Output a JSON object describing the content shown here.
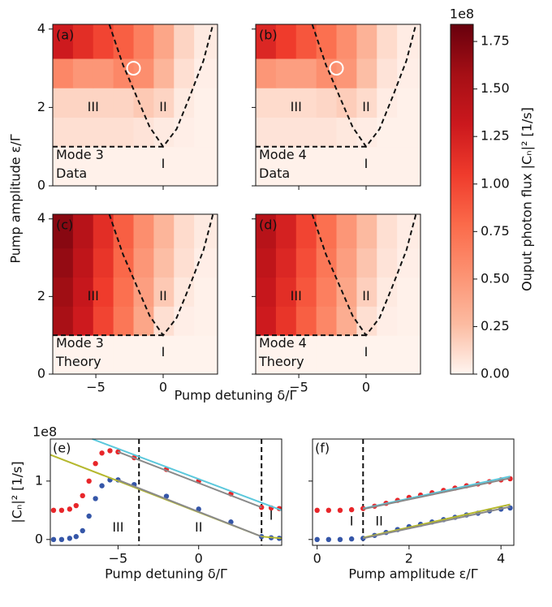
{
  "labels": {
    "heatmap_x": "Pump detuning δ/Γ",
    "heatmap_y": "Pump amplitude ε/Γ"
  },
  "chart_data": [
    {
      "type": "heatmap",
      "x_edges": [
        -8.2,
        -6.7,
        -5.2,
        -3.7,
        -2.2,
        -0.7,
        0.8,
        2.3,
        4.04
      ],
      "y_edges": [
        0,
        1,
        1.75,
        2.5,
        3.25,
        4.12
      ],
      "z": [
        [
          0.02,
          0.02,
          0.02,
          0.02,
          0.02,
          0.02,
          0.02,
          0.02
        ],
        [
          0.1,
          0.1,
          0.1,
          0.1,
          0.08,
          0.05,
          0.03,
          0.02
        ],
        [
          0.15,
          0.15,
          0.15,
          0.15,
          0.2,
          0.15,
          0.05,
          0.02
        ],
        [
          0.6,
          0.5,
          0.5,
          0.6,
          0.55,
          0.3,
          0.1,
          0.03
        ],
        [
          1.3,
          1.15,
          1.0,
          0.85,
          0.65,
          0.4,
          0.15,
          0.05
        ]
      ],
      "xlim": [
        -8.2,
        4.04
      ],
      "ylim": [
        0,
        4.12
      ],
      "xticks": [
        {
          "value": -5,
          "label": "−5"
        },
        0
      ],
      "yticks": [
        0,
        2,
        4
      ],
      "xtick_labels": false,
      "ytick_labels": true,
      "boundary": {
        "x": [
          -4,
          -3,
          -2,
          -1,
          0,
          1,
          2,
          3,
          3.7
        ],
        "y": [
          4.12,
          3.1,
          2.3,
          1.5,
          1,
          1.45,
          2.3,
          3.2,
          4.12
        ]
      },
      "threshold": {
        "x": [
          -8.2,
          0
        ],
        "y": [
          1,
          1
        ]
      },
      "marker": {
        "x": -2.2,
        "y": 3.0
      },
      "annotations": [
        "(a)",
        "III",
        "II",
        "I",
        "Mode 3",
        "Data"
      ]
    },
    {
      "type": "heatmap",
      "x_edges": [
        -8.2,
        -6.7,
        -5.2,
        -3.7,
        -2.2,
        -0.7,
        0.8,
        2.3,
        4.04
      ],
      "y_edges": [
        0,
        1,
        1.75,
        2.5,
        3.25,
        4.12
      ],
      "z": [
        [
          0.02,
          0.02,
          0.02,
          0.02,
          0.02,
          0.02,
          0.02,
          0.02
        ],
        [
          0.08,
          0.08,
          0.08,
          0.08,
          0.06,
          0.04,
          0.02,
          0.02
        ],
        [
          0.12,
          0.12,
          0.12,
          0.14,
          0.18,
          0.12,
          0.04,
          0.02
        ],
        [
          0.5,
          0.45,
          0.45,
          0.55,
          0.5,
          0.25,
          0.08,
          0.03
        ],
        [
          1.2,
          1.05,
          0.9,
          0.75,
          0.55,
          0.32,
          0.12,
          0.04
        ]
      ],
      "xlim": [
        -8.2,
        4.04
      ],
      "ylim": [
        0,
        4.12
      ],
      "xticks": [
        {
          "value": -5,
          "label": "−5"
        },
        0
      ],
      "yticks": [
        0,
        2,
        4
      ],
      "xtick_labels": false,
      "ytick_labels": false,
      "boundary": {
        "x": [
          -4,
          -3,
          -2,
          -1,
          0,
          1,
          2,
          3,
          3.7
        ],
        "y": [
          4.12,
          3.1,
          2.3,
          1.5,
          1,
          1.45,
          2.3,
          3.2,
          4.12
        ]
      },
      "threshold": {
        "x": [
          -8.2,
          0
        ],
        "y": [
          1,
          1
        ]
      },
      "marker": {
        "x": -2.2,
        "y": 3.0
      },
      "annotations": [
        "(b)",
        "III",
        "II",
        "I",
        "Mode 4",
        "Data"
      ]
    },
    {
      "type": "heatmap",
      "x_edges": [
        -8.2,
        -6.7,
        -5.2,
        -3.7,
        -2.2,
        -0.7,
        0.8,
        2.3,
        4.04
      ],
      "y_edges": [
        0,
        1,
        1.75,
        2.5,
        3.25,
        4.12
      ],
      "z": [
        [
          0.01,
          0.01,
          0.01,
          0.01,
          0.01,
          0.01,
          0.01,
          0.01
        ],
        [
          1.55,
          1.3,
          1.0,
          0.7,
          0.4,
          0.1,
          0.03,
          0.02
        ],
        [
          1.6,
          1.35,
          1.05,
          0.75,
          0.45,
          0.2,
          0.06,
          0.02
        ],
        [
          1.65,
          1.4,
          1.1,
          0.8,
          0.5,
          0.25,
          0.1,
          0.03
        ],
        [
          1.7,
          1.45,
          1.15,
          0.85,
          0.55,
          0.3,
          0.12,
          0.05
        ]
      ],
      "xlim": [
        -8.2,
        4.04
      ],
      "ylim": [
        0,
        4.12
      ],
      "xticks": [
        {
          "value": -5,
          "label": "−5"
        },
        0
      ],
      "yticks": [
        0,
        2,
        4
      ],
      "xtick_labels": true,
      "ytick_labels": true,
      "boundary": {
        "x": [
          -4,
          -3,
          -2,
          -1,
          0,
          1,
          2,
          3,
          3.7
        ],
        "y": [
          4.12,
          3.1,
          2.3,
          1.5,
          1,
          1.45,
          2.3,
          3.2,
          4.12
        ]
      },
      "threshold": {
        "x": [
          -8.2,
          0
        ],
        "y": [
          1,
          1
        ]
      },
      "annotations": [
        "(c)",
        "III",
        "II",
        "I",
        "Mode 3",
        "Theory"
      ]
    },
    {
      "type": "heatmap",
      "x_edges": [
        -8.2,
        -6.7,
        -5.2,
        -3.7,
        -2.2,
        -0.7,
        0.8,
        2.3,
        4.04
      ],
      "y_edges": [
        0,
        1,
        1.75,
        2.5,
        3.25,
        4.12
      ],
      "z": [
        [
          0.01,
          0.01,
          0.01,
          0.01,
          0.01,
          0.01,
          0.01,
          0.01
        ],
        [
          1.3,
          1.1,
          0.85,
          0.6,
          0.35,
          0.1,
          0.03,
          0.02
        ],
        [
          1.35,
          1.15,
          0.9,
          0.65,
          0.4,
          0.17,
          0.05,
          0.02
        ],
        [
          1.4,
          1.2,
          0.95,
          0.7,
          0.45,
          0.22,
          0.08,
          0.03
        ],
        [
          1.45,
          1.25,
          1.0,
          0.75,
          0.5,
          0.27,
          0.1,
          0.04
        ]
      ],
      "xlim": [
        -8.2,
        4.04
      ],
      "ylim": [
        0,
        4.12
      ],
      "xticks": [
        {
          "value": -5,
          "label": "−5"
        },
        0
      ],
      "yticks": [
        0,
        2,
        4
      ],
      "xtick_labels": true,
      "ytick_labels": false,
      "boundary": {
        "x": [
          -4,
          -3,
          -2,
          -1,
          0,
          1,
          2,
          3,
          3.7
        ],
        "y": [
          4.12,
          3.1,
          2.3,
          1.5,
          1,
          1.45,
          2.3,
          3.2,
          4.12
        ]
      },
      "threshold": {
        "x": [
          -8.2,
          0
        ],
        "y": [
          1,
          1
        ]
      },
      "annotations": [
        "(d)",
        "III",
        "II",
        "I",
        "Mode 4",
        "Theory"
      ]
    },
    {
      "type": "colorbar",
      "colors": [
        "#fff5f0",
        "#fcbba1",
        "#fc9272",
        "#fb6a4a",
        "#ef3b2c",
        "#cb181d",
        "#a50f15",
        "#67000d"
      ],
      "ylim": [
        0,
        1.84
      ],
      "yticks": [
        {
          "value": 0,
          "label": "0.00"
        },
        {
          "value": 0.25,
          "label": "0.25"
        },
        {
          "value": 0.5,
          "label": "0.50"
        },
        {
          "value": 0.75,
          "label": "0.75"
        },
        {
          "value": 1,
          "label": "1.00"
        },
        {
          "value": 1.25,
          "label": "1.25"
        },
        {
          "value": 1.5,
          "label": "1.50"
        },
        {
          "value": 1.75,
          "label": "1.75"
        }
      ],
      "label": "Ouput photon flux |Cₙ|² [1/s]",
      "offset": "1e8"
    },
    {
      "type": "scatter",
      "xlabel": "Pump detuning δ/Γ",
      "ylabel": "|Cₙ|² [1/s]",
      "offset": "1e8",
      "xlim": [
        -9.2,
        5.15
      ],
      "ylim": [
        -0.1,
        1.72
      ],
      "xticks": [
        {
          "value": -5,
          "label": "−5"
        },
        0
      ],
      "yticks": [
        0,
        1
      ],
      "ytick_labels": true,
      "x": [
        -9,
        -8.5,
        -8,
        -7.6,
        -7.2,
        -6.8,
        -6.4,
        -6,
        -5.5,
        -5,
        -4,
        -2,
        0,
        2,
        3.9,
        4.5,
        5
      ],
      "series": [
        {
          "mode": "markers",
          "color": "#e8262a",
          "values": [
            0.5,
            0.5,
            0.52,
            0.58,
            0.75,
            1.0,
            1.3,
            1.48,
            1.52,
            1.5,
            1.4,
            1.2,
            1.0,
            0.78,
            0.55,
            0.54,
            0.53
          ]
        },
        {
          "mode": "markers",
          "color": "#3556a8",
          "values": [
            0,
            0,
            0.02,
            0.05,
            0.15,
            0.4,
            0.7,
            0.92,
            1.02,
            1.02,
            0.94,
            0.74,
            0.52,
            0.3,
            0.05,
            0.03,
            0.02
          ]
        },
        {
          "mode": "line",
          "color": "#5bc8dc",
          "x": [
            -6.6,
            5.15
          ],
          "values": [
            1.72,
            0.5
          ]
        },
        {
          "mode": "line",
          "color": "#b5b82e",
          "x": [
            -9.2,
            3.9,
            5.15
          ],
          "values": [
            1.45,
            0.05,
            0.02
          ]
        },
        {
          "mode": "line",
          "color": "#8a8a8a",
          "x": [
            -5,
            3.9
          ],
          "values": [
            1.5,
            0.55
          ]
        },
        {
          "mode": "line",
          "color": "#8a8a8a",
          "x": [
            -5,
            3.9
          ],
          "values": [
            1.02,
            0.05
          ]
        }
      ],
      "vlines": [
        -3.7,
        3.9
      ],
      "annotations": [
        "(e)",
        "III",
        "II",
        "I"
      ]
    },
    {
      "type": "scatter",
      "xlabel": "Pump amplitude ε/Γ",
      "xlim": [
        -0.1,
        4.28
      ],
      "ylim": [
        -0.1,
        1.72
      ],
      "xticks": [
        0,
        2,
        4
      ],
      "yticks": [
        0,
        1
      ],
      "ytick_labels": false,
      "x": [
        0,
        0.25,
        0.5,
        0.75,
        1,
        1.25,
        1.5,
        1.75,
        2,
        2.25,
        2.5,
        2.75,
        3,
        3.25,
        3.5,
        3.75,
        4,
        4.2
      ],
      "series": [
        {
          "mode": "markers",
          "color": "#e8262a",
          "values": [
            0.5,
            0.5,
            0.5,
            0.51,
            0.53,
            0.57,
            0.62,
            0.67,
            0.72,
            0.76,
            0.8,
            0.84,
            0.88,
            0.92,
            0.95,
            0.99,
            1.02,
            1.04
          ]
        },
        {
          "mode": "markers",
          "color": "#3556a8",
          "values": [
            0,
            0,
            0,
            0.01,
            0.02,
            0.07,
            0.12,
            0.17,
            0.22,
            0.26,
            0.3,
            0.34,
            0.38,
            0.42,
            0.45,
            0.49,
            0.52,
            0.54
          ]
        },
        {
          "mode": "line",
          "color": "#5bc8dc",
          "x": [
            1,
            4.2
          ],
          "values": [
            0.53,
            1.08
          ]
        },
        {
          "mode": "line",
          "color": "#b5b82e",
          "x": [
            1,
            4.2
          ],
          "values": [
            0.03,
            0.6
          ]
        },
        {
          "mode": "line",
          "color": "#8a8a8a",
          "x": [
            1,
            4.2
          ],
          "values": [
            0.52,
            1.05
          ]
        },
        {
          "mode": "line",
          "color": "#8a8a8a",
          "x": [
            1,
            4.2
          ],
          "values": [
            0.02,
            0.56
          ]
        }
      ],
      "vlines": [
        1
      ],
      "annotations": [
        "(f)",
        "I",
        "II"
      ]
    }
  ]
}
